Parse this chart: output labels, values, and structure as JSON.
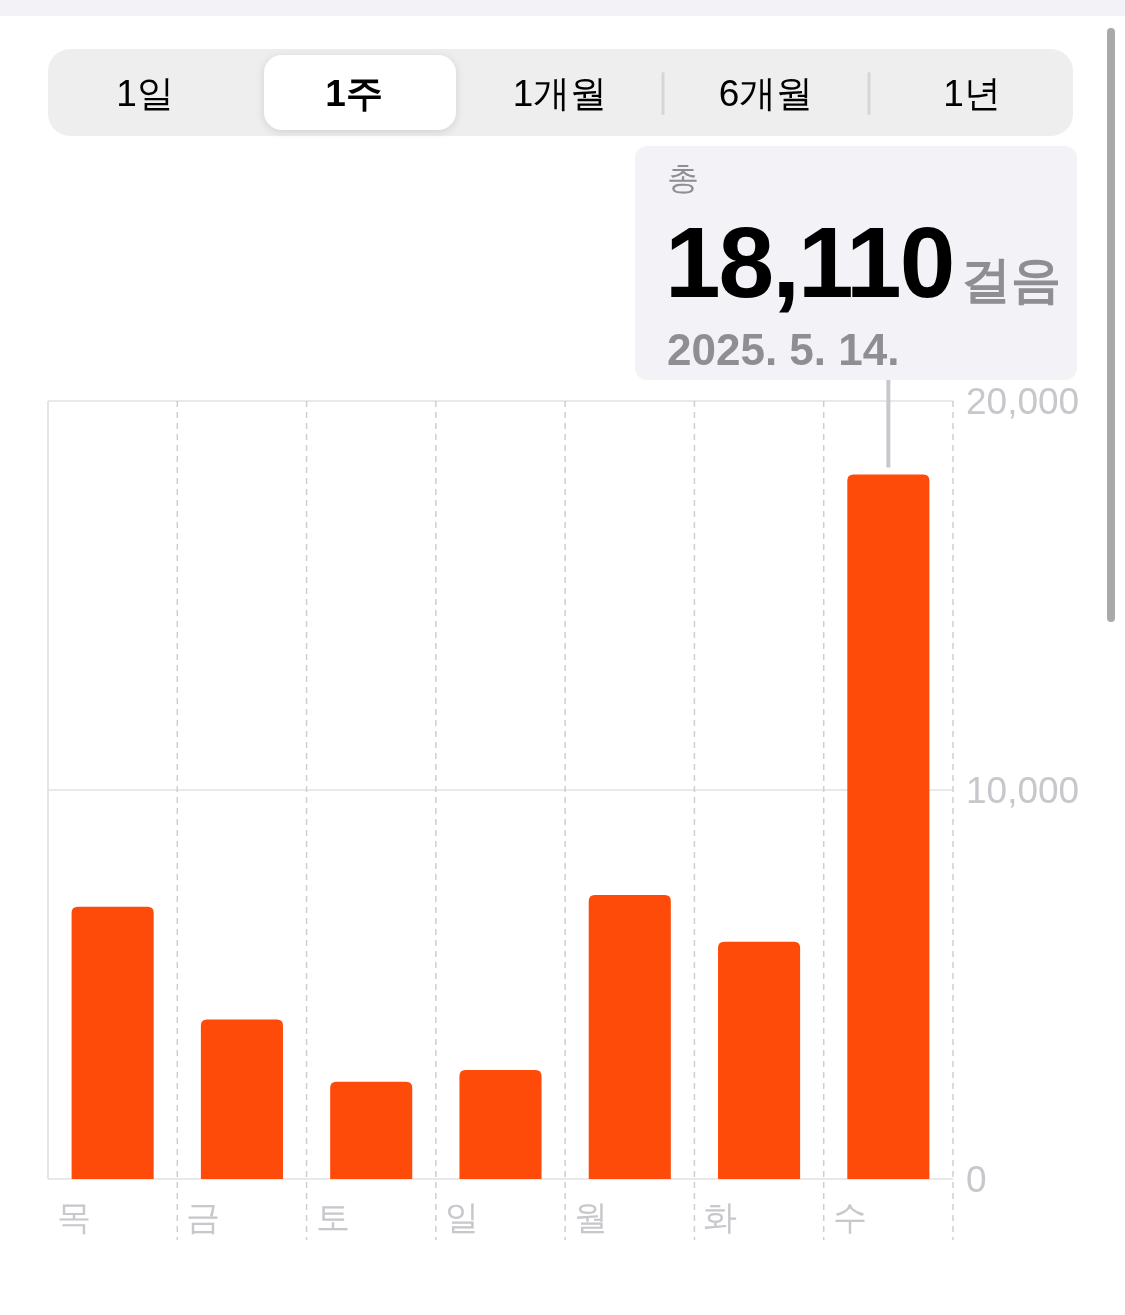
{
  "chart_data": {
    "type": "bar",
    "categories": [
      "목",
      "금",
      "토",
      "일",
      "월",
      "화",
      "수"
    ],
    "values": [
      7000,
      4100,
      2500,
      2800,
      7300,
      6100,
      18110
    ],
    "color": "#ff4b0a",
    "ylim": [
      0,
      20000
    ],
    "yticks": [
      0,
      {
        "value": 10000,
        "label": "10,000"
      },
      {
        "value": 20000,
        "label": "20,000"
      }
    ],
    "grid": true,
    "annotations": [
      "1일",
      "1주",
      "1개월",
      "6개월",
      "1년",
      "총",
      {
        "text": "18,110걸음",
        "x": "수",
        "y": 18110
      },
      "2025. 5. 14."
    ]
  }
}
